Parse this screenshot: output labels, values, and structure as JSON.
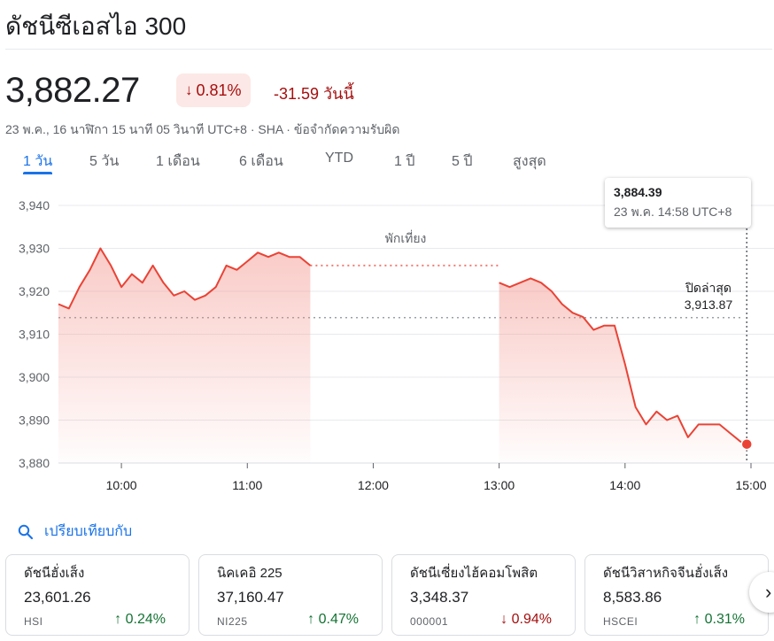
{
  "title": "ดัชนีซีเอสไอ 300",
  "price": "3,882.27",
  "change_pct": "0.81%",
  "change_abs": "-31.59 วันนี้",
  "meta": "23 พ.ค., 16 นาฬิกา 15 นาที 05 วินาที UTC+8 · SHA · ข้อจำกัดความรับผิด",
  "tabs": [
    "1 วัน",
    "5 วัน",
    "1 เดือน",
    "6 เดือน",
    "YTD",
    "1 ปี",
    "5 ปี",
    "สูงสุด"
  ],
  "tooltip": {
    "value": "3,884.39",
    "time": "23 พ.ค. 14:58 UTC+8"
  },
  "colors": {
    "up": "#137333",
    "down": "#a50e0e",
    "line": "#ea4335",
    "accent": "#1a73e8"
  },
  "compare_label": "เปรียบเทียบกับ",
  "compare_icon": "search-icon",
  "cards": [
    {
      "name": "ดัชนีฮั่งเส็ง",
      "value": "23,601.26",
      "ticker": "HSI",
      "pct": "0.24%",
      "dir": "up"
    },
    {
      "name": "นิคเคอิ 225",
      "value": "37,160.47",
      "ticker": "NI225",
      "pct": "0.47%",
      "dir": "up"
    },
    {
      "name": "ดัชนีเซี่ยงไฮ้คอมโพสิต",
      "value": "3,348.37",
      "ticker": "000001",
      "pct": "0.94%",
      "dir": "down"
    },
    {
      "name": "ดัชนีวิสาหกิจจีนฮั่งเส็ง",
      "value": "8,583.86",
      "ticker": "HSCEI",
      "pct": "0.31%",
      "dir": "up"
    }
  ],
  "next_icon": "chevron-right-icon",
  "chart_data": {
    "type": "line",
    "ylim": [
      3880,
      3940
    ],
    "y_ticks": [
      "3,940",
      "3,930",
      "3,920",
      "3,910",
      "3,900",
      "3,890",
      "3,880"
    ],
    "x_ticks": [
      "10:00",
      "11:00",
      "12:00",
      "13:00",
      "14:00",
      "15:00"
    ],
    "break_label": "พักเที่ยง",
    "prev_close_label": "ปิดล่าสุด",
    "prev_close_value": "3,913.87",
    "prev_close": 3913.87,
    "morning": {
      "x": [
        "09:30",
        "09:35",
        "09:40",
        "09:45",
        "09:50",
        "09:55",
        "10:00",
        "10:05",
        "10:10",
        "10:15",
        "10:20",
        "10:25",
        "10:30",
        "10:35",
        "10:40",
        "10:45",
        "10:50",
        "10:55",
        "11:00",
        "11:05",
        "11:10",
        "11:15",
        "11:20",
        "11:25",
        "11:30"
      ],
      "y": [
        3917,
        3916,
        3921,
        3925,
        3930,
        3926,
        3921,
        3924,
        3922,
        3926,
        3922,
        3919,
        3920,
        3918,
        3919,
        3921,
        3926,
        3925,
        3927,
        3929,
        3928,
        3929,
        3928,
        3928,
        3926
      ]
    },
    "afternoon": {
      "x": [
        "13:00",
        "13:05",
        "13:10",
        "13:15",
        "13:20",
        "13:25",
        "13:30",
        "13:35",
        "13:40",
        "13:45",
        "13:50",
        "13:55",
        "14:00",
        "14:05",
        "14:10",
        "14:15",
        "14:20",
        "14:25",
        "14:30",
        "14:35",
        "14:40",
        "14:45",
        "14:50",
        "14:55",
        "14:58"
      ],
      "y": [
        3922,
        3921,
        3922,
        3923,
        3922,
        3920,
        3917,
        3915,
        3914,
        3911,
        3912,
        3912,
        3903,
        3893,
        3889,
        3892,
        3890,
        3891,
        3886,
        3889,
        3889,
        3889,
        3887,
        3885,
        3884.39
      ]
    }
  }
}
